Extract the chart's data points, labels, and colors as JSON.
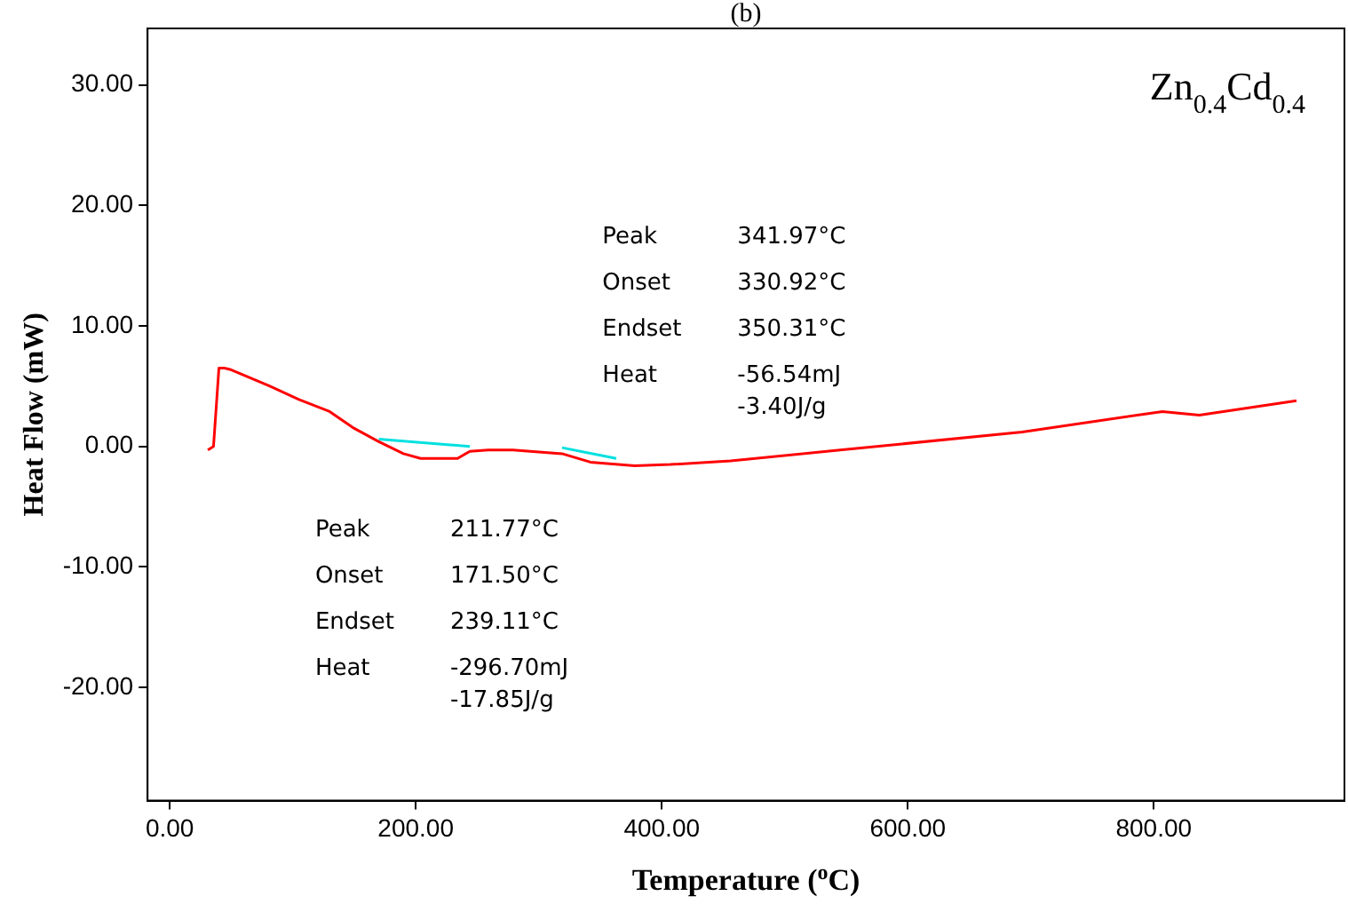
{
  "chart_data": {
    "type": "line",
    "title": "(b)",
    "xlabel": "Temperature ($^{o}$C)",
    "ylabel": "Heat Flow (mW)",
    "xlim": [
      -18,
      955
    ],
    "ylim": [
      -29.4,
      34.7
    ],
    "xticks": [
      {
        "value": 0,
        "label": "0.00"
      },
      {
        "value": 200,
        "label": "200.00"
      },
      {
        "value": 400,
        "label": "400.00"
      },
      {
        "value": 600,
        "label": "600.00"
      },
      {
        "value": 800,
        "label": "800.00"
      }
    ],
    "yticks": [
      {
        "value": -20,
        "label": "-20.00"
      },
      {
        "value": -10,
        "label": "-10.00"
      },
      {
        "value": 0,
        "label": "0.00"
      },
      {
        "value": 10,
        "label": "10.00"
      },
      {
        "value": 20,
        "label": "20.00"
      },
      {
        "value": 30,
        "label": "30.00"
      }
    ],
    "grid": false,
    "legend": false,
    "marker": "none",
    "line_style": "solid",
    "series": [
      {
        "color": "#ff0000",
        "x": [
          31,
          35.6,
          40,
          44.4,
          48.9,
          81.5,
          105,
          130,
          150,
          170,
          190,
          204,
          234,
          244,
          259,
          279,
          319,
          342,
          378,
          407,
          456,
          545,
          693,
          807,
          837,
          916
        ],
        "values": [
          -0.3,
          0,
          6.5,
          6.5,
          6.4,
          5,
          3.9,
          2.9,
          1.5,
          0.4,
          -0.6,
          -1,
          -1,
          -0.4,
          -0.3,
          -0.3,
          -0.6,
          -1.3,
          -1.6,
          -1.5,
          -1.2,
          -0.3,
          1.2,
          2.9,
          2.6,
          3.8
        ]
      },
      {
        "color": "#00e0e0",
        "x": [
          170,
          244
        ],
        "values": [
          0.6,
          0
        ]
      },
      {
        "color": "#00e0e0",
        "x": [
          319,
          363
        ],
        "values": [
          -0.1,
          -1
        ]
      }
    ],
    "annotations": [
      "Zn$_{0.4}$Cd$_{0.4}$",
      "Peak",
      "341.97°C",
      "Onset",
      "330.92°C",
      "Endset",
      "350.31°C",
      "Heat",
      "-56.54mJ",
      "-3.40J/g",
      "Peak",
      "211.77°C",
      "Onset",
      "171.50°C",
      "Endset",
      "239.11°C",
      "Heat",
      "-296.70mJ",
      "-17.85J/g"
    ]
  }
}
